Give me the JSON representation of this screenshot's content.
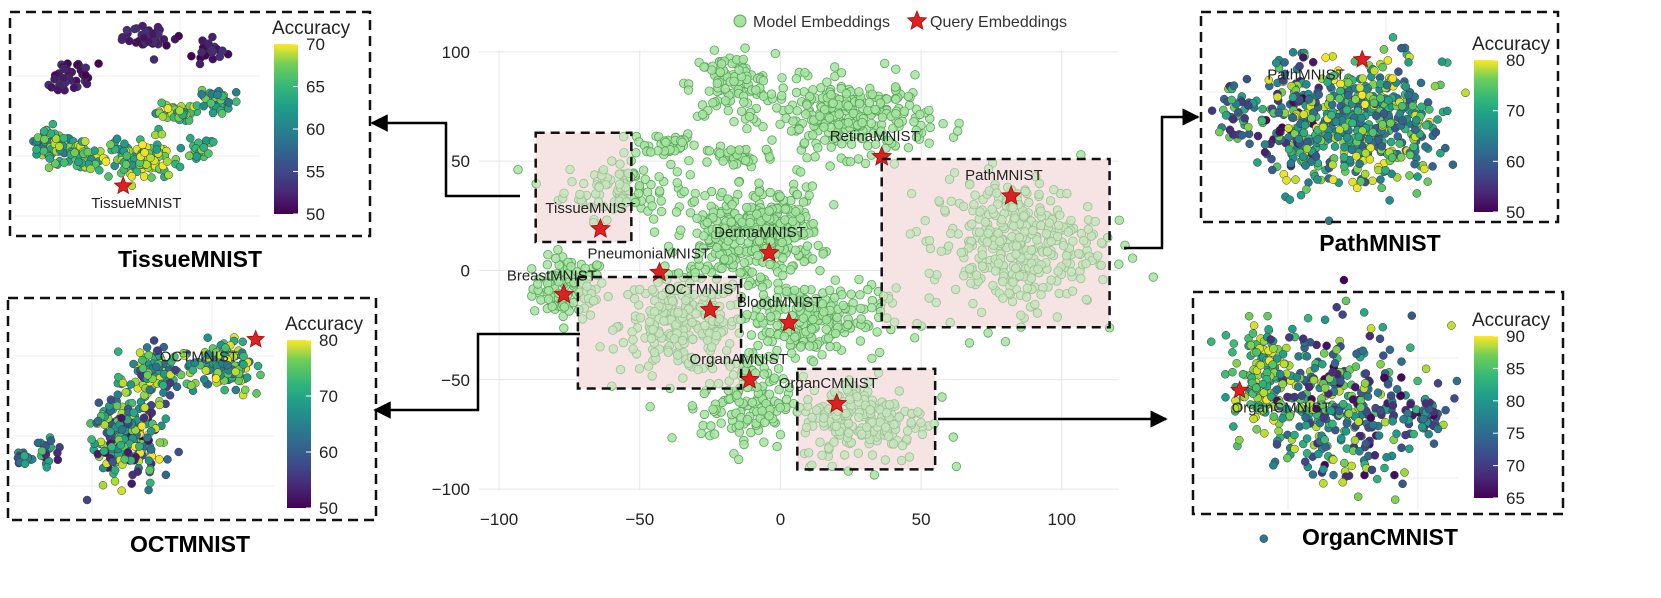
{
  "legend": {
    "model_label": "Model Embeddings",
    "query_label": "Query Embeddings"
  },
  "colors": {
    "model_fill": "#a6e3a1",
    "model_stroke": "#5aa55a",
    "query": "#dd2020",
    "highlight_box": "#f6e4e4",
    "arrow": "#000000"
  },
  "chart_data": [
    {
      "type": "scatter",
      "id": "main",
      "title": "",
      "xlabel": "",
      "ylabel": "",
      "xlim": [
        -110,
        120
      ],
      "ylim": [
        -105,
        110
      ],
      "x_ticks": [
        -100,
        -50,
        0,
        50,
        100
      ],
      "y_ticks": [
        -100,
        -50,
        0,
        50,
        100
      ],
      "grid": true,
      "legend_position": "top-center",
      "clusters": [
        {
          "cx": -75,
          "cy": -8,
          "rx": 13,
          "ry": 14,
          "n": 110
        },
        {
          "cx": -42,
          "cy": 58,
          "rx": 12,
          "ry": 6,
          "n": 40
        },
        {
          "cx": -55,
          "cy": 38,
          "rx": 22,
          "ry": 14,
          "n": 110
        },
        {
          "cx": -35,
          "cy": -25,
          "rx": 22,
          "ry": 22,
          "n": 230
        },
        {
          "cx": -17,
          "cy": 85,
          "rx": 15,
          "ry": 14,
          "n": 110
        },
        {
          "cx": -15,
          "cy": 52,
          "rx": 13,
          "ry": 5,
          "n": 40
        },
        {
          "cx": -20,
          "cy": 15,
          "rx": 17,
          "ry": 22,
          "n": 160
        },
        {
          "cx": -2,
          "cy": 18,
          "rx": 16,
          "ry": 20,
          "n": 220
        },
        {
          "cx": 25,
          "cy": 70,
          "rx": 28,
          "ry": 17,
          "n": 280
        },
        {
          "cx": 10,
          "cy": -22,
          "rx": 27,
          "ry": 17,
          "n": 230
        },
        {
          "cx": -12,
          "cy": -60,
          "rx": 16,
          "ry": 22,
          "n": 140
        },
        {
          "cx": 30,
          "cy": -68,
          "rx": 23,
          "ry": 20,
          "n": 200
        },
        {
          "cx": 83,
          "cy": 12,
          "rx": 30,
          "ry": 30,
          "n": 360
        }
      ],
      "queries": [
        {
          "label": "TissueMNIST",
          "x": -64,
          "y": 19
        },
        {
          "label": "PneumoniaMNIST",
          "x": -43,
          "y": -1
        },
        {
          "label": "BreastMNIST",
          "x": -77,
          "y": -11
        },
        {
          "label": "OCTMNIST",
          "x": -25,
          "y": -18
        },
        {
          "label": "DermaMNIST",
          "x": -4,
          "y": 8
        },
        {
          "label": "RetinaMNIST",
          "x": 36,
          "y": 52
        },
        {
          "label": "BloodMNIST",
          "x": 3,
          "y": -24
        },
        {
          "label": "OrganAMNIST",
          "x": -11,
          "y": -50
        },
        {
          "label": "OrganCMNIST",
          "x": 20,
          "y": -61
        },
        {
          "label": "PathMNIST",
          "x": 82,
          "y": 34
        }
      ],
      "highlight_boxes": [
        {
          "name": "TissueMNIST",
          "x0": -87,
          "x1": -53,
          "y0": 13,
          "y1": 63
        },
        {
          "name": "OCTMNIST",
          "x0": -72,
          "x1": -14,
          "y0": -54,
          "y1": -3
        },
        {
          "name": "PathMNIST",
          "x0": 36,
          "x1": 117,
          "y0": -26,
          "y1": 51
        },
        {
          "name": "OrganCMNIST",
          "x0": 6,
          "x1": 55,
          "y0": -91,
          "y1": -45
        }
      ]
    },
    {
      "type": "scatter",
      "id": "tissue",
      "caption": "TissueMNIST",
      "colorbar_title": "Accuracy",
      "colorbar_range": [
        50,
        70
      ],
      "colorbar_ticks": [
        70,
        65,
        60,
        55,
        50
      ],
      "query_label": "TissueMNIST",
      "query": {
        "x": 0.43,
        "y": 0.85
      },
      "clusters": [
        {
          "cx": 0.54,
          "cy": 0.11,
          "rx": 0.1,
          "ry": 0.06,
          "n": 45,
          "acc": [
            50,
            53
          ]
        },
        {
          "cx": 0.78,
          "cy": 0.16,
          "rx": 0.07,
          "ry": 0.07,
          "n": 25,
          "acc": [
            50,
            53
          ]
        },
        {
          "cx": 0.22,
          "cy": 0.3,
          "rx": 0.09,
          "ry": 0.06,
          "n": 40,
          "acc": [
            50,
            53
          ]
        },
        {
          "cx": 0.13,
          "cy": 0.65,
          "rx": 0.1,
          "ry": 0.1,
          "n": 70,
          "acc": [
            58,
            68
          ]
        },
        {
          "cx": 0.27,
          "cy": 0.7,
          "rx": 0.06,
          "ry": 0.08,
          "n": 35,
          "acc": [
            60,
            70
          ]
        },
        {
          "cx": 0.5,
          "cy": 0.72,
          "rx": 0.14,
          "ry": 0.1,
          "n": 120,
          "acc": [
            60,
            70
          ]
        },
        {
          "cx": 0.66,
          "cy": 0.48,
          "rx": 0.08,
          "ry": 0.05,
          "n": 45,
          "acc": [
            60,
            70
          ]
        },
        {
          "cx": 0.82,
          "cy": 0.43,
          "rx": 0.07,
          "ry": 0.07,
          "n": 40,
          "acc": [
            58,
            66
          ]
        },
        {
          "cx": 0.75,
          "cy": 0.67,
          "rx": 0.06,
          "ry": 0.05,
          "n": 25,
          "acc": [
            60,
            68
          ]
        }
      ]
    },
    {
      "type": "scatter",
      "id": "oct",
      "caption": "OCTMNIST",
      "colorbar_title": "Accuracy",
      "colorbar_range": [
        50,
        80
      ],
      "colorbar_ticks": [
        80,
        70,
        60,
        50
      ],
      "query_label": "OCTMNIST",
      "query": {
        "x": 0.93,
        "y": 0.12
      },
      "clusters": [
        {
          "cx": 0.05,
          "cy": 0.72,
          "rx": 0.04,
          "ry": 0.03,
          "n": 15,
          "acc": [
            55,
            70
          ]
        },
        {
          "cx": 0.14,
          "cy": 0.68,
          "rx": 0.04,
          "ry": 0.07,
          "n": 20,
          "acc": [
            50,
            72
          ]
        },
        {
          "cx": 0.44,
          "cy": 0.62,
          "rx": 0.13,
          "ry": 0.2,
          "n": 220,
          "acc": [
            50,
            80
          ]
        },
        {
          "cx": 0.55,
          "cy": 0.3,
          "rx": 0.12,
          "ry": 0.12,
          "n": 110,
          "acc": [
            55,
            80
          ]
        },
        {
          "cx": 0.82,
          "cy": 0.25,
          "rx": 0.12,
          "ry": 0.13,
          "n": 130,
          "acc": [
            60,
            80
          ]
        }
      ]
    },
    {
      "type": "scatter",
      "id": "path",
      "caption": "PathMNIST",
      "colorbar_title": "Accuracy",
      "colorbar_range": [
        50,
        80
      ],
      "colorbar_ticks": [
        80,
        70,
        60,
        50
      ],
      "query_label": "PathMNIST",
      "query": {
        "x": 0.62,
        "y": 0.15
      },
      "clusters": [
        {
          "cx": 0.35,
          "cy": 0.5,
          "rx": 0.14,
          "ry": 0.32,
          "n": 170,
          "acc": [
            50,
            80
          ]
        },
        {
          "cx": 0.65,
          "cy": 0.48,
          "rx": 0.26,
          "ry": 0.36,
          "n": 420,
          "acc": [
            58,
            80
          ]
        },
        {
          "cx": 0.12,
          "cy": 0.45,
          "rx": 0.08,
          "ry": 0.15,
          "n": 45,
          "acc": [
            52,
            75
          ]
        }
      ]
    },
    {
      "type": "scatter",
      "id": "organc",
      "caption": "OrganCMNIST",
      "colorbar_title": "Accuracy",
      "colorbar_range": [
        65,
        90
      ],
      "colorbar_ticks": [
        90,
        85,
        80,
        75,
        70,
        65
      ],
      "query_label": "OrganCMNIST",
      "query": {
        "x": 0.16,
        "y": 0.42
      },
      "clusters": [
        {
          "cx": 0.25,
          "cy": 0.36,
          "rx": 0.12,
          "ry": 0.25,
          "n": 160,
          "acc": [
            78,
            90
          ]
        },
        {
          "cx": 0.55,
          "cy": 0.5,
          "rx": 0.3,
          "ry": 0.38,
          "n": 340,
          "acc": [
            65,
            88
          ]
        },
        {
          "cx": 0.85,
          "cy": 0.55,
          "rx": 0.1,
          "ry": 0.12,
          "n": 40,
          "acc": [
            65,
            82
          ]
        }
      ]
    }
  ]
}
